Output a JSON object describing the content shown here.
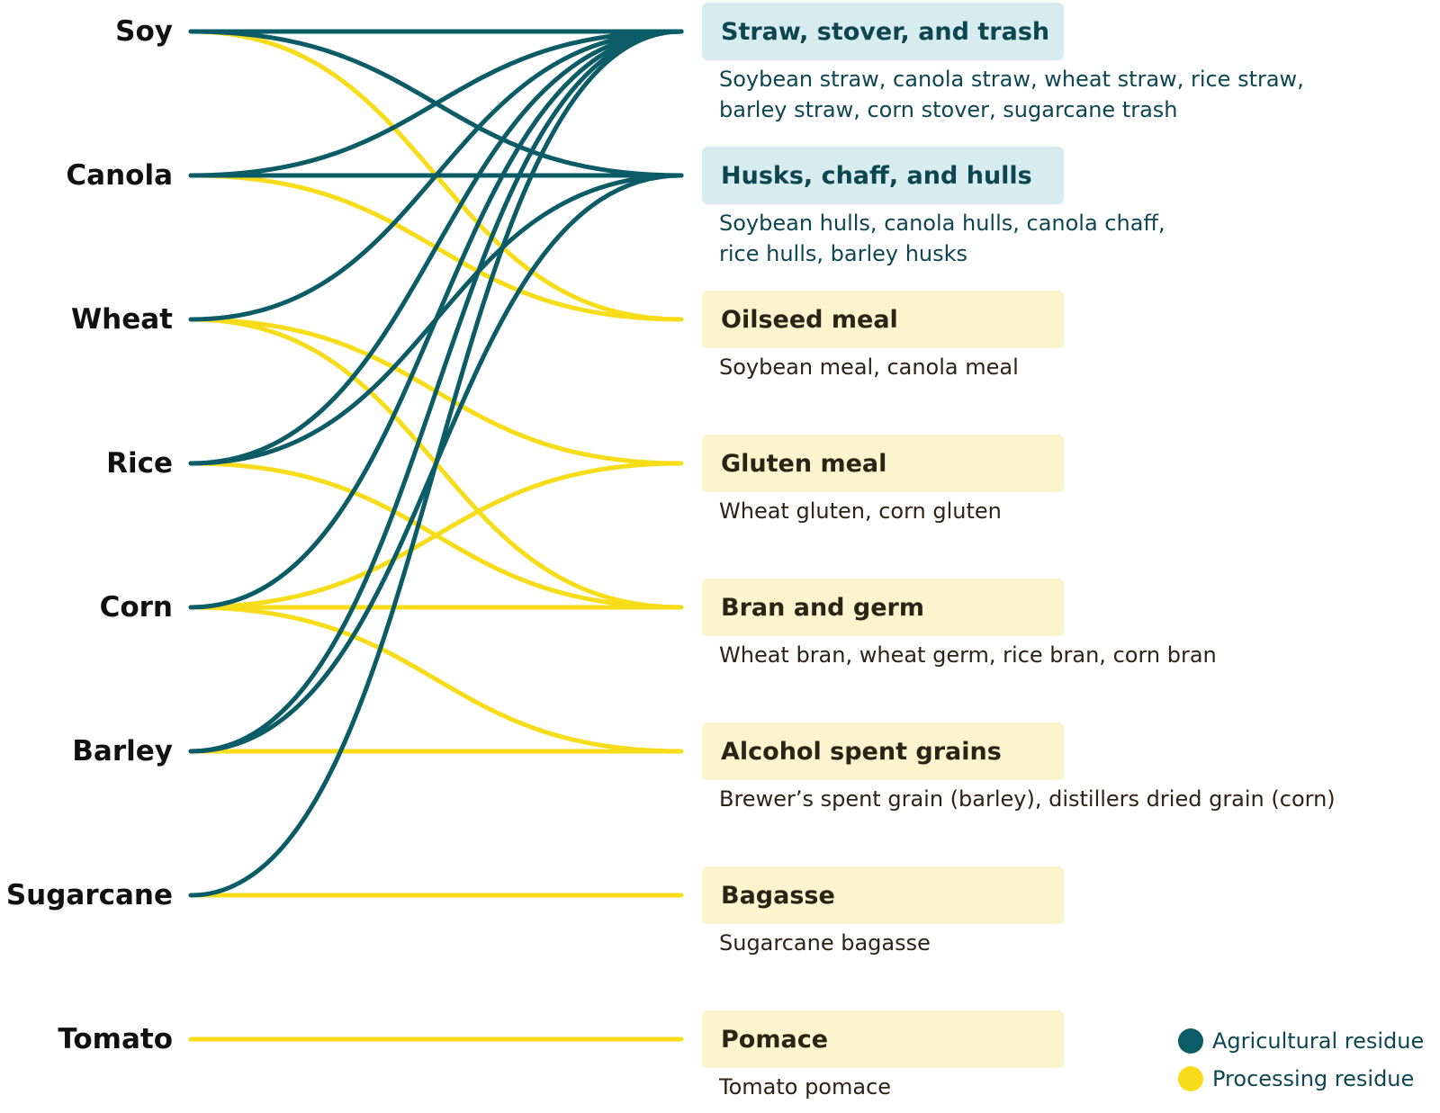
{
  "colors": {
    "agricultural": "#0b5c66",
    "processing": "#f7dc1a"
  },
  "sources": [
    "Soy",
    "Canola",
    "Wheat",
    "Rice",
    "Corn",
    "Barley",
    "Sugarcane",
    "Tomato"
  ],
  "targets": [
    {
      "label": "Straw, stover, and trash",
      "type": "agricultural",
      "description": [
        "Soybean straw, canola straw, wheat straw, rice straw,",
        "barley straw, corn stover, sugarcane trash"
      ]
    },
    {
      "label": "Husks, chaff, and hulls",
      "type": "agricultural",
      "description": [
        "Soybean hulls, canola hulls, canola chaff,",
        "rice hulls, barley husks"
      ]
    },
    {
      "label": "Oilseed meal",
      "type": "processing",
      "description": [
        "Soybean meal, canola meal"
      ]
    },
    {
      "label": "Gluten meal",
      "type": "processing",
      "description": [
        "Wheat gluten, corn gluten"
      ]
    },
    {
      "label": "Bran and germ",
      "type": "processing",
      "description": [
        "Wheat bran, wheat germ, rice bran, corn bran"
      ]
    },
    {
      "label": "Alcohol spent grains",
      "type": "processing",
      "description": [
        "Brewer’s spent grain (barley), distillers dried grain (corn)"
      ]
    },
    {
      "label": "Bagasse",
      "type": "processing",
      "description": [
        "Sugarcane bagasse"
      ]
    },
    {
      "label": "Pomace",
      "type": "processing",
      "description": [
        "Tomato pomace"
      ]
    }
  ],
  "links": [
    {
      "source": "Soy",
      "target": "Straw, stover, and trash",
      "type": "agricultural"
    },
    {
      "source": "Soy",
      "target": "Husks, chaff, and hulls",
      "type": "agricultural"
    },
    {
      "source": "Soy",
      "target": "Oilseed meal",
      "type": "processing"
    },
    {
      "source": "Canola",
      "target": "Straw, stover, and trash",
      "type": "agricultural"
    },
    {
      "source": "Canola",
      "target": "Husks, chaff, and hulls",
      "type": "agricultural"
    },
    {
      "source": "Canola",
      "target": "Oilseed meal",
      "type": "processing"
    },
    {
      "source": "Wheat",
      "target": "Straw, stover, and trash",
      "type": "agricultural"
    },
    {
      "source": "Wheat",
      "target": "Gluten meal",
      "type": "processing"
    },
    {
      "source": "Wheat",
      "target": "Bran and germ",
      "type": "processing"
    },
    {
      "source": "Rice",
      "target": "Straw, stover, and trash",
      "type": "agricultural"
    },
    {
      "source": "Rice",
      "target": "Husks, chaff, and hulls",
      "type": "agricultural"
    },
    {
      "source": "Rice",
      "target": "Bran and germ",
      "type": "processing"
    },
    {
      "source": "Corn",
      "target": "Straw, stover, and trash",
      "type": "agricultural"
    },
    {
      "source": "Corn",
      "target": "Gluten meal",
      "type": "processing"
    },
    {
      "source": "Corn",
      "target": "Bran and germ",
      "type": "processing"
    },
    {
      "source": "Corn",
      "target": "Alcohol spent grains",
      "type": "processing"
    },
    {
      "source": "Barley",
      "target": "Straw, stover, and trash",
      "type": "agricultural"
    },
    {
      "source": "Barley",
      "target": "Husks, chaff, and hulls",
      "type": "agricultural"
    },
    {
      "source": "Barley",
      "target": "Alcohol spent grains",
      "type": "processing"
    },
    {
      "source": "Sugarcane",
      "target": "Straw, stover, and trash",
      "type": "agricultural"
    },
    {
      "source": "Sugarcane",
      "target": "Bagasse",
      "type": "processing"
    },
    {
      "source": "Tomato",
      "target": "Pomace",
      "type": "processing"
    }
  ],
  "legend": [
    {
      "label": "Agricultural residue",
      "type": "agricultural"
    },
    {
      "label": "Processing residue",
      "type": "processing"
    }
  ]
}
